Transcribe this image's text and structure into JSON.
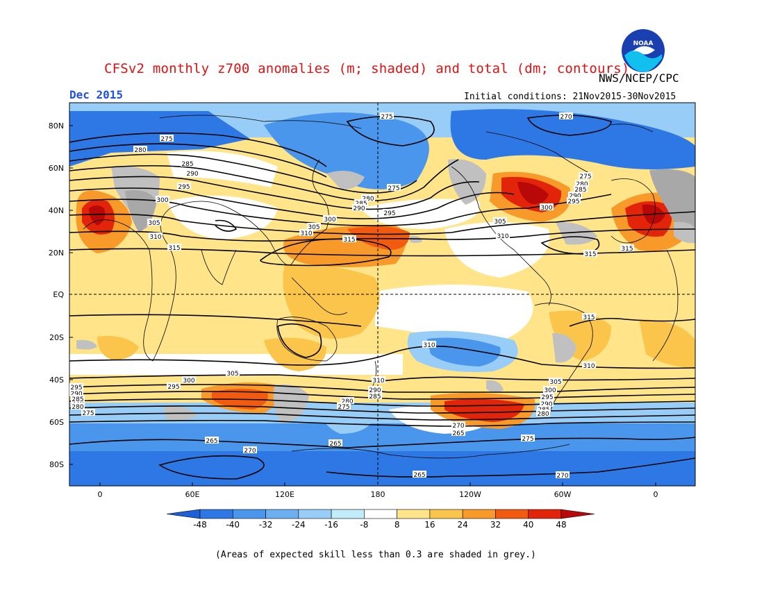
{
  "header": {
    "title": "CFSv2 monthly z700 anomalies (m; shaded) and total (dm; contours)",
    "month": "Dec 2015",
    "org": "NWS/NCEP/CPC",
    "initial_conditions": "Initial conditions: 21Nov2015-30Nov2015",
    "logo_text": "NOAA"
  },
  "map": {
    "lat_labels": [
      "80N",
      "60N",
      "40N",
      "20N",
      "EQ",
      "20S",
      "40S",
      "60S",
      "80S"
    ],
    "lon_labels": [
      "0",
      "60E",
      "120E",
      "180",
      "120W",
      "60W",
      "0"
    ],
    "contour_labels": [
      "275",
      "270",
      "275",
      "280",
      "285",
      "290",
      "295",
      "300",
      "305",
      "310",
      "315",
      "275",
      "280",
      "285",
      "290",
      "295",
      "300",
      "305",
      "310",
      "315",
      "275",
      "280",
      "285",
      "290",
      "295",
      "300",
      "305",
      "310",
      "315",
      "315",
      "310",
      "315",
      "310",
      "305",
      "300",
      "295",
      "290",
      "285",
      "280",
      "275",
      "270",
      "265",
      "270",
      "265",
      "265",
      "265",
      "295",
      "290",
      "285",
      "280",
      "275",
      "270",
      "310",
      "305",
      "300",
      "295",
      "290",
      "285",
      "280",
      "275",
      "270",
      "265"
    ]
  },
  "colorbar": {
    "ticks": [
      "-48",
      "-40",
      "-32",
      "-24",
      "-16",
      "-8",
      "8",
      "16",
      "24",
      "32",
      "40",
      "48"
    ],
    "colors": [
      "#1f5fd8",
      "#2e78e6",
      "#4a96ec",
      "#6db0f2",
      "#98cdf7",
      "#c3ecfa",
      "#ffffff",
      "#ffe48a",
      "#fbc44a",
      "#f89a2a",
      "#f25a10",
      "#e2240b",
      "#b80808"
    ]
  },
  "footnote": "(Areas of expected skill less than 0.3 are shaded in grey.)"
}
